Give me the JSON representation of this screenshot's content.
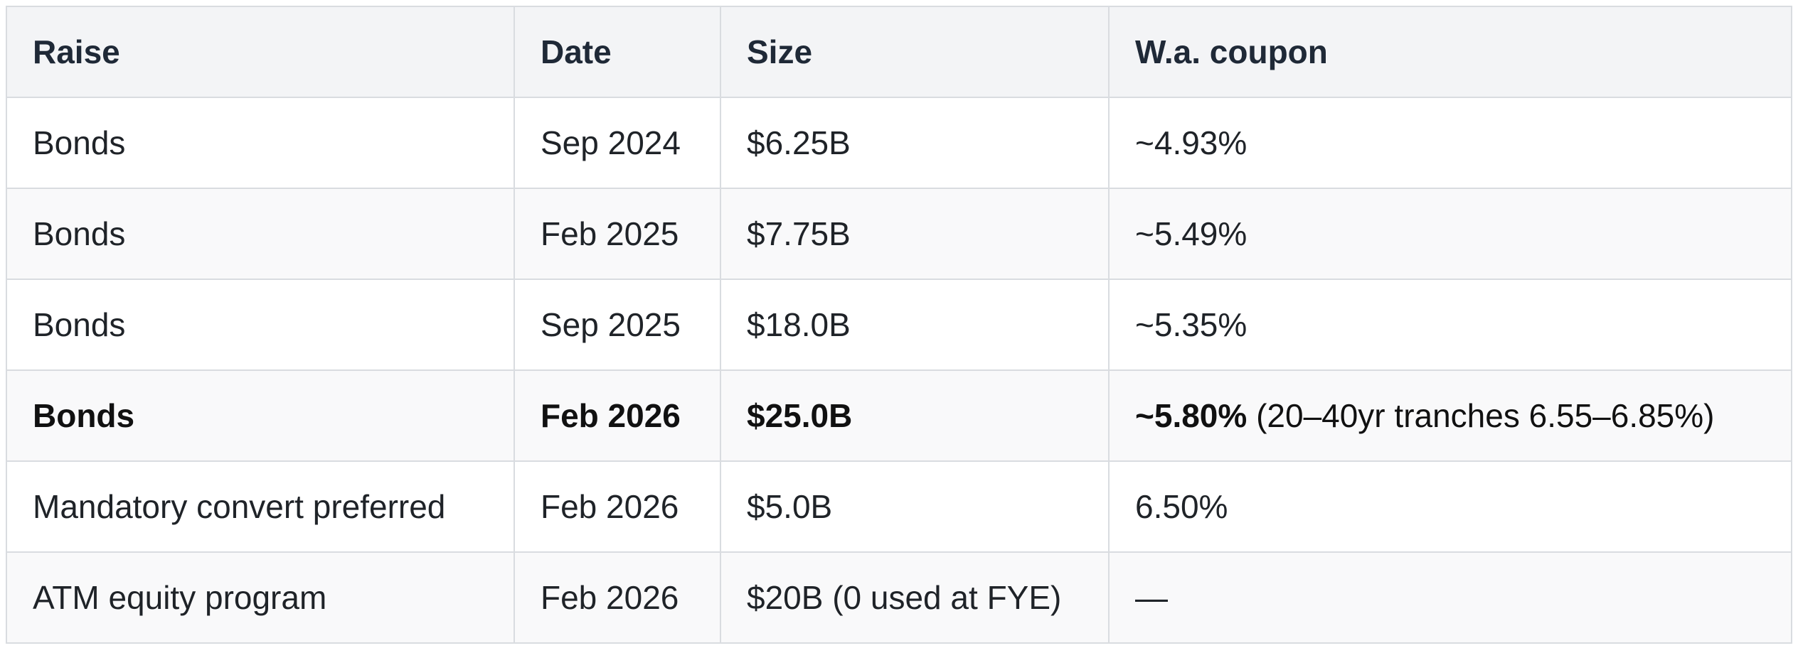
{
  "table": {
    "headers": [
      "Raise",
      "Date",
      "Size",
      "W.a. coupon"
    ],
    "rows": [
      {
        "raise": "Bonds",
        "date": "Sep 2024",
        "size": "$6.25B",
        "coupon": "~4.93%",
        "coupon_note": ""
      },
      {
        "raise": "Bonds",
        "date": "Feb 2025",
        "size": "$7.75B",
        "coupon": "~5.49%",
        "coupon_note": ""
      },
      {
        "raise": "Bonds",
        "date": "Sep 2025",
        "size": "$18.0B",
        "coupon": "~5.35%",
        "coupon_note": ""
      },
      {
        "raise": "Bonds",
        "date": "Feb 2026",
        "size": "$25.0B",
        "coupon": "~5.80%",
        "coupon_note": "(20–40yr tranches 6.55–6.85%)"
      },
      {
        "raise": "Mandatory convert preferred",
        "date": "Feb 2026",
        "size": "$5.0B",
        "coupon": "6.50%",
        "coupon_note": ""
      },
      {
        "raise": "ATM equity program",
        "date": "Feb 2026",
        "size": "$20B (0 used at FYE)",
        "coupon": "—",
        "coupon_note": ""
      }
    ]
  }
}
